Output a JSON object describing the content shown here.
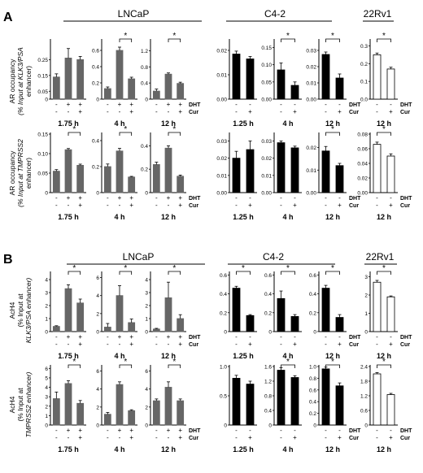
{
  "panel_labels": [
    "A",
    "B"
  ],
  "groups": [
    "LNCaP",
    "C4-2",
    "22Rv1"
  ],
  "treatment_labels": {
    "dht": "DHT",
    "cur": "Cur"
  },
  "sig": "*",
  "row_labels": [
    [
      "AR occupancy",
      "(% Input at KLK3/PSA",
      "enhancer)"
    ],
    [
      "AR occupancy",
      "(% Input at TMPRSS2",
      "enhancer)"
    ],
    [
      "AcH4",
      "(% Input at",
      "KLK3/PSA enhancer)"
    ],
    [
      "AcH4",
      "(% Input at",
      "TMPRSS2 enhancer)"
    ]
  ],
  "colors": {
    "lncap": "#666666",
    "c42": "#000000",
    "rv1_fill": "#ffffff",
    "rv1_stroke": "#000000"
  },
  "chart_data": [
    {
      "type": "bar",
      "row": 0,
      "group": "LNCaP",
      "time": "1.75 h",
      "dht": [
        "-",
        "+",
        "+"
      ],
      "cur": [
        "-",
        "-",
        "+"
      ],
      "ticks": [
        "0",
        "0.05",
        "0.15",
        "0.25"
      ],
      "ylim": [
        0,
        0.37
      ],
      "values": [
        0.14,
        0.26,
        0.25
      ],
      "errors": [
        0.02,
        0.06,
        0.02
      ],
      "sig": ""
    },
    {
      "type": "bar",
      "row": 0,
      "group": "LNCaP",
      "time": "4 h",
      "dht": [
        "-",
        "+",
        "+"
      ],
      "cur": [
        "-",
        "-",
        "+"
      ],
      "ticks": [
        "0",
        "0.2",
        "0.4",
        "0.6"
      ],
      "ylim": [
        0,
        0.72
      ],
      "values": [
        0.13,
        0.6,
        0.25
      ],
      "errors": [
        0.02,
        0.04,
        0.02
      ],
      "sig": "*"
    },
    {
      "type": "bar",
      "row": 0,
      "group": "LNCaP",
      "time": "12 h",
      "dht": [
        "-",
        "+",
        "+"
      ],
      "cur": [
        "-",
        "-",
        "+"
      ],
      "ticks": [
        "0",
        "0.4",
        "0.8",
        "1.2"
      ],
      "ylim": [
        0,
        1.45
      ],
      "values": [
        0.2,
        0.62,
        0.39
      ],
      "errors": [
        0.05,
        0.03,
        0.03
      ],
      "sig": "*"
    },
    {
      "type": "bar",
      "row": 0,
      "group": "C4-2",
      "time": "1.25 h",
      "dht": [
        "-",
        "-"
      ],
      "cur": [
        "-",
        "+"
      ],
      "ticks": [
        "0.00",
        "0.01",
        "0.02"
      ],
      "ylim": [
        0,
        0.024
      ],
      "values": [
        0.0185,
        0.0165
      ],
      "errors": [
        0.0012,
        0.001
      ],
      "sig": ""
    },
    {
      "type": "bar",
      "row": 0,
      "group": "C4-2",
      "time": "4 h",
      "dht": [
        "-",
        "-"
      ],
      "cur": [
        "-",
        "+"
      ],
      "ticks": [
        "0.00",
        "0.05",
        "0.10",
        "0.15"
      ],
      "ylim": [
        0,
        0.17
      ],
      "values": [
        0.085,
        0.04
      ],
      "errors": [
        0.02,
        0.01
      ],
      "sig": "*"
    },
    {
      "type": "bar",
      "row": 0,
      "group": "C4-2",
      "time": "12 h",
      "dht": [
        "-",
        "-"
      ],
      "cur": [
        "-",
        "+"
      ],
      "ticks": [
        "0.00",
        "0.01",
        "0.02",
        "0.03"
      ],
      "ylim": [
        0,
        0.036
      ],
      "values": [
        0.0275,
        0.013
      ],
      "errors": [
        0.0015,
        0.0025
      ],
      "sig": "*"
    },
    {
      "type": "bar",
      "row": 0,
      "group": "22Rv1",
      "time": "12 h",
      "dht": [
        "-",
        "-"
      ],
      "cur": [
        "-",
        "+"
      ],
      "ticks": [
        "0.0",
        "0.1",
        "0.2",
        "0.3"
      ],
      "ylim": [
        0,
        0.33
      ],
      "values": [
        0.25,
        0.17
      ],
      "errors": [
        0.01,
        0.01
      ],
      "sig": "*"
    },
    {
      "type": "bar",
      "row": 1,
      "group": "LNCaP",
      "time": "1.75 h",
      "dht": [
        "-",
        "+",
        "+"
      ],
      "cur": [
        "-",
        "-",
        "+"
      ],
      "ticks": [
        "0",
        "0.05",
        "0.10",
        "0.15"
      ],
      "ylim": [
        0,
        0.15
      ],
      "values": [
        0.055,
        0.11,
        0.07
      ],
      "errors": [
        0.004,
        0.003,
        0.003
      ],
      "sig": "*"
    },
    {
      "type": "bar",
      "row": 1,
      "group": "LNCaP",
      "time": "4 h",
      "dht": [
        "-",
        "+",
        "+"
      ],
      "cur": [
        "-",
        "-",
        "+"
      ],
      "ticks": [
        "0",
        "0.2",
        "0.4"
      ],
      "ylim": [
        0,
        0.45
      ],
      "values": [
        0.2,
        0.32,
        0.12
      ],
      "errors": [
        0.02,
        0.02,
        0.005
      ],
      "sig": "*"
    },
    {
      "type": "bar",
      "row": 1,
      "group": "LNCaP",
      "time": "12 h",
      "dht": [
        "-",
        "+",
        "+"
      ],
      "cur": [
        "-",
        "-",
        "+"
      ],
      "ticks": [
        "0",
        "0.2",
        "0.4"
      ],
      "ylim": [
        0,
        0.5
      ],
      "values": [
        0.24,
        0.38,
        0.14
      ],
      "errors": [
        0.02,
        0.02,
        0.01
      ],
      "sig": "*"
    },
    {
      "type": "bar",
      "row": 1,
      "group": "C4-2",
      "time": "1.25 h",
      "dht": [
        "-",
        "-"
      ],
      "cur": [
        "-",
        "+"
      ],
      "ticks": [
        "0.00",
        "0.01",
        "0.02",
        "0.03"
      ],
      "ylim": [
        0,
        0.034
      ],
      "values": [
        0.02,
        0.025
      ],
      "errors": [
        0.004,
        0.005
      ],
      "sig": ""
    },
    {
      "type": "bar",
      "row": 1,
      "group": "C4-2",
      "time": "4 h",
      "dht": [
        "-",
        "-"
      ],
      "cur": [
        "-",
        "+"
      ],
      "ticks": [
        "0.00",
        "0.01",
        "0.02",
        "0.03"
      ],
      "ylim": [
        0,
        0.034
      ],
      "values": [
        0.029,
        0.026
      ],
      "errors": [
        0.001,
        0.001
      ],
      "sig": ""
    },
    {
      "type": "bar",
      "row": 1,
      "group": "C4-2",
      "time": "12 h",
      "dht": [
        "-",
        "-"
      ],
      "cur": [
        "-",
        "+"
      ],
      "ticks": [
        "0.00",
        "0.01",
        "0.02"
      ],
      "ylim": [
        0,
        0.026
      ],
      "values": [
        0.0185,
        0.012
      ],
      "errors": [
        0.002,
        0.001
      ],
      "sig": "*"
    },
    {
      "type": "bar",
      "row": 1,
      "group": "22Rv1",
      "time": "12 h",
      "dht": [
        "-",
        "-"
      ],
      "cur": [
        "-",
        "+"
      ],
      "ticks": [
        "0.00",
        "0.02",
        "0.04",
        "0.06",
        "0.08"
      ],
      "ylim": [
        0,
        0.08
      ],
      "values": [
        0.066,
        0.05
      ],
      "errors": [
        0.003,
        0.003
      ],
      "sig": "*"
    },
    {
      "type": "bar",
      "row": 2,
      "group": "LNCaP",
      "time": "1.75 h",
      "dht": [
        "-",
        "+",
        "+"
      ],
      "cur": [
        "-",
        "-",
        "+"
      ],
      "ticks": [
        "0",
        "1",
        "2",
        "3",
        "4"
      ],
      "ylim": [
        0,
        4.5
      ],
      "values": [
        0.4,
        3.3,
        2.2
      ],
      "errors": [
        0.05,
        0.3,
        0.3
      ],
      "sig": "*"
    },
    {
      "type": "bar",
      "row": 2,
      "group": "LNCaP",
      "time": "4 h",
      "dht": [
        "-",
        "+",
        "+"
      ],
      "cur": [
        "-",
        "-",
        "+"
      ],
      "ticks": [
        "0",
        "2",
        "4",
        "6"
      ],
      "ylim": [
        0,
        6.5
      ],
      "values": [
        0.5,
        4.0,
        1.0
      ],
      "errors": [
        0.4,
        1.1,
        0.4
      ],
      "sig": "*"
    },
    {
      "type": "bar",
      "row": 2,
      "group": "LNCaP",
      "time": "12 h",
      "dht": [
        "-",
        "+",
        "+"
      ],
      "cur": [
        "-",
        "-",
        "+"
      ],
      "ticks": [
        "0",
        "1",
        "2",
        "3",
        "4"
      ],
      "ylim": [
        0,
        4.5
      ],
      "values": [
        0.2,
        2.6,
        1.0
      ],
      "errors": [
        0.05,
        1.2,
        0.3
      ],
      "sig": "*"
    },
    {
      "type": "bar",
      "row": 2,
      "group": "C4-2",
      "time": "1.25 h",
      "dht": [
        "-",
        "-"
      ],
      "cur": [
        "-",
        "+"
      ],
      "ticks": [
        "0",
        "0.2",
        "0.4",
        "0.6"
      ],
      "ylim": [
        0,
        0.62
      ],
      "values": [
        0.46,
        0.17
      ],
      "errors": [
        0.02,
        0.01
      ],
      "sig": "*"
    },
    {
      "type": "bar",
      "row": 2,
      "group": "C4-2",
      "time": "4 h",
      "dht": [
        "-",
        "-"
      ],
      "cur": [
        "-",
        "+"
      ],
      "ticks": [
        "0",
        "0.2",
        "0.4",
        "0.6"
      ],
      "ylim": [
        0,
        0.62
      ],
      "values": [
        0.35,
        0.16
      ],
      "errors": [
        0.08,
        0.02
      ],
      "sig": "*"
    },
    {
      "type": "bar",
      "row": 2,
      "group": "C4-2",
      "time": "12 h",
      "dht": [
        "-",
        "-"
      ],
      "cur": [
        "-",
        "+"
      ],
      "ticks": [
        "0",
        "0.2",
        "0.4",
        "0.6"
      ],
      "ylim": [
        0,
        0.62
      ],
      "values": [
        0.46,
        0.15
      ],
      "errors": [
        0.03,
        0.03
      ],
      "sig": "*"
    },
    {
      "type": "bar",
      "row": 2,
      "group": "22Rv1",
      "time": "12 h",
      "dht": [
        "-",
        "-"
      ],
      "cur": [
        "-",
        "+"
      ],
      "ticks": [
        "0",
        "1",
        "2",
        "3"
      ],
      "ylim": [
        0,
        3.2
      ],
      "values": [
        2.7,
        1.9
      ],
      "errors": [
        0.1,
        0.05
      ],
      "sig": "*"
    },
    {
      "type": "bar",
      "row": 3,
      "group": "LNCaP",
      "time": "1.75 h",
      "dht": [
        "-",
        "+",
        "+"
      ],
      "cur": [
        "-",
        "-",
        "+"
      ],
      "ticks": [
        "0",
        "1",
        "2",
        "3",
        "4",
        "5",
        "6"
      ],
      "ylim": [
        0,
        6.2
      ],
      "values": [
        2.8,
        4.4,
        2.3
      ],
      "errors": [
        0.7,
        0.3,
        0.3
      ],
      "sig": "*"
    },
    {
      "type": "bar",
      "row": 3,
      "group": "LNCaP",
      "time": "4 h",
      "dht": [
        "-",
        "+",
        "+"
      ],
      "cur": [
        "-",
        "-",
        "+"
      ],
      "ticks": [
        "0",
        "2",
        "4",
        "6"
      ],
      "ylim": [
        0,
        6.5
      ],
      "values": [
        1.2,
        4.5,
        1.6
      ],
      "errors": [
        0.2,
        0.3,
        0.1
      ],
      "sig": "*"
    },
    {
      "type": "bar",
      "row": 3,
      "group": "LNCaP",
      "time": "12 h",
      "dht": [
        "-",
        "+",
        "+"
      ],
      "cur": [
        "-",
        "-",
        "+"
      ],
      "ticks": [
        "0",
        "2",
        "4",
        "6"
      ],
      "ylim": [
        0,
        6.5
      ],
      "values": [
        2.7,
        4.2,
        2.7
      ],
      "errors": [
        0.2,
        0.6,
        0.2
      ],
      "sig": "*"
    },
    {
      "type": "bar",
      "row": 3,
      "group": "C4-2",
      "time": "1.25 h",
      "dht": [
        "-",
        "-"
      ],
      "cur": [
        "-",
        "+"
      ],
      "ticks": [
        "0",
        "0.5",
        "1.0"
      ],
      "ylim": [
        0,
        1.0
      ],
      "values": [
        0.8,
        0.7
      ],
      "errors": [
        0.05,
        0.05
      ],
      "sig": ""
    },
    {
      "type": "bar",
      "row": 3,
      "group": "C4-2",
      "time": "4 h",
      "dht": [
        "-",
        "-"
      ],
      "cur": [
        "-",
        "+"
      ],
      "ticks": [
        "0",
        "0.4",
        "0.8",
        "1.2",
        "1.6"
      ],
      "ylim": [
        0,
        1.6
      ],
      "values": [
        1.5,
        1.3
      ],
      "errors": [
        0.07,
        0.05
      ],
      "sig": "*"
    },
    {
      "type": "bar",
      "row": 3,
      "group": "C4-2",
      "time": "12 h",
      "dht": [
        "-",
        "-"
      ],
      "cur": [
        "-",
        "+"
      ],
      "ticks": [
        "0",
        "0.2",
        "0.4",
        "0.6",
        "0.8",
        "1.0"
      ],
      "ylim": [
        0,
        1.0
      ],
      "values": [
        0.96,
        0.67
      ],
      "errors": [
        0.03,
        0.05
      ],
      "sig": "*"
    },
    {
      "type": "bar",
      "row": 3,
      "group": "22Rv1",
      "time": "12 h",
      "dht": [
        "-",
        "-"
      ],
      "cur": [
        "-",
        "+"
      ],
      "ticks": [
        "0",
        "0.6",
        "1.2",
        "1.8",
        "2.4"
      ],
      "ylim": [
        0,
        2.4
      ],
      "values": [
        2.1,
        1.25
      ],
      "errors": [
        0.05,
        0.05
      ],
      "sig": "*"
    }
  ]
}
